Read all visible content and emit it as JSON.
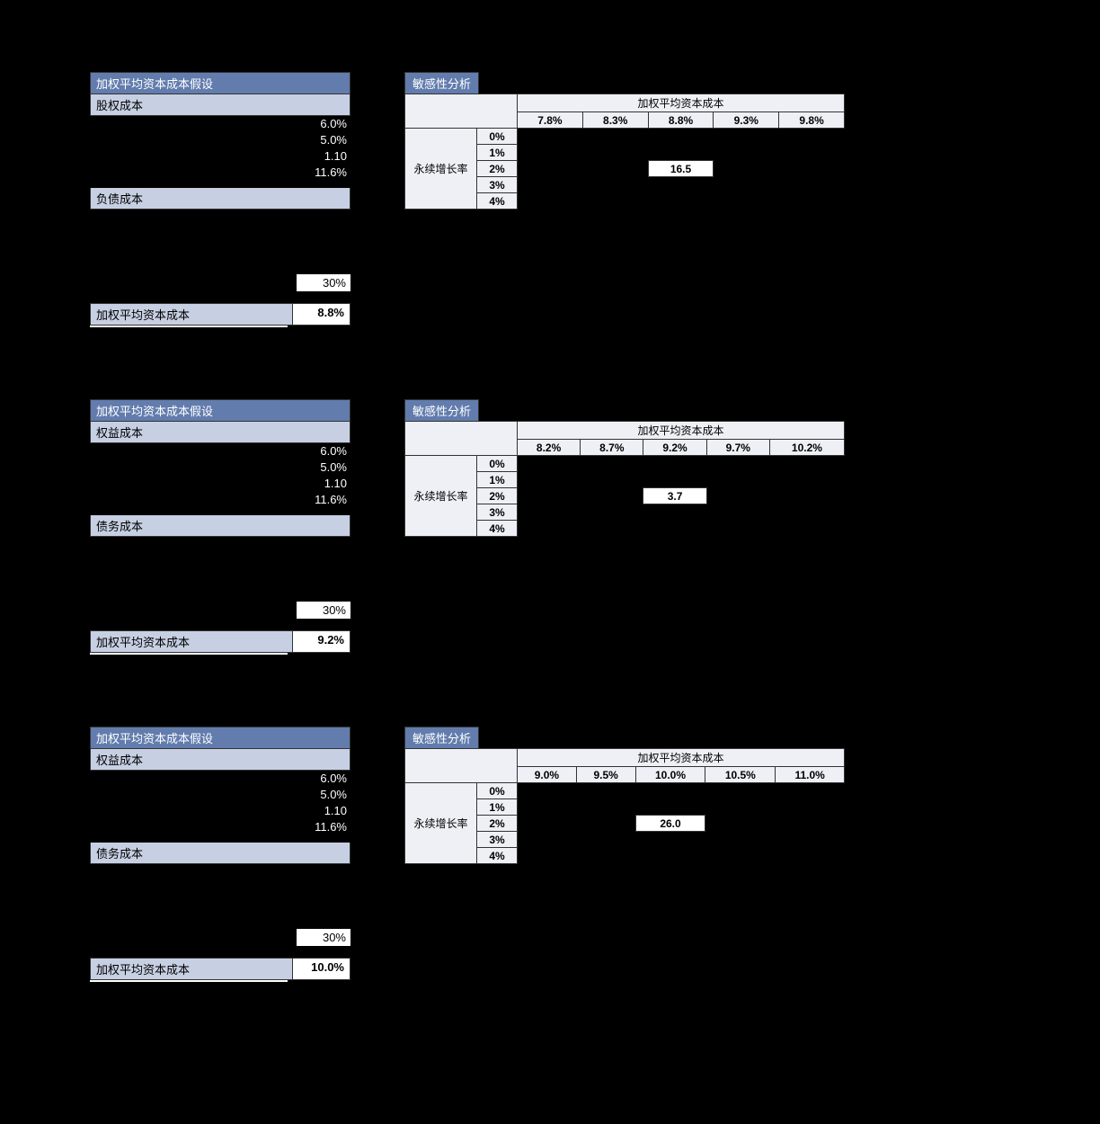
{
  "colors": {
    "title_bg": "#627cad",
    "sub_bg": "#c7d0e3",
    "cell_bg": "#eef0f6",
    "border": "#333333",
    "page_bg": "#000000",
    "text_light": "#ffffff"
  },
  "sections": [
    {
      "wacc": {
        "title": "加权平均资本成本假设",
        "sub1": "股权成本",
        "vals": [
          "6.0%",
          "5.0%",
          "1.10",
          "11.6%"
        ],
        "sub2": "负债成本",
        "gap_rows": 4,
        "boxed_val": "30%",
        "final_label": "加权平均资本成本",
        "final_val": "8.8%"
      },
      "sens": {
        "title": "敏感性分析",
        "col_header": "加权平均资本成本",
        "cols": [
          "7.8%",
          "8.3%",
          "8.8%",
          "9.3%",
          "9.8%"
        ],
        "row_header": "永续增长率",
        "rows": [
          "0%",
          "1%",
          "2%",
          "3%",
          "4%"
        ],
        "spotlight_row": 2,
        "spotlight_col": 2,
        "spotlight_val": "16.5"
      }
    },
    {
      "wacc": {
        "title": "加权平均资本成本假设",
        "sub1": "权益成本",
        "vals": [
          "6.0%",
          "5.0%",
          "1.10",
          "11.6%"
        ],
        "sub2": "债务成本",
        "gap_rows": 4,
        "boxed_val": "30%",
        "final_label": "加权平均资本成本",
        "final_val": "9.2%"
      },
      "sens": {
        "title": "敏感性分析",
        "col_header": "加权平均资本成本",
        "cols": [
          "8.2%",
          "8.7%",
          "9.2%",
          "9.7%",
          "10.2%"
        ],
        "row_header": "永续增长率",
        "rows": [
          "0%",
          "1%",
          "2%",
          "3%",
          "4%"
        ],
        "spotlight_row": 2,
        "spotlight_col": 2,
        "spotlight_val": "3.7"
      }
    },
    {
      "wacc": {
        "title": "加权平均资本成本假设",
        "sub1": "权益成本",
        "vals": [
          "6.0%",
          "5.0%",
          "1.10",
          "11.6%"
        ],
        "sub2": "债务成本",
        "gap_rows": 4,
        "boxed_val": "30%",
        "final_label": "加权平均资本成本",
        "final_val": "10.0%"
      },
      "sens": {
        "title": "敏感性分析",
        "col_header": "加权平均资本成本",
        "cols": [
          "9.0%",
          "9.5%",
          "10.0%",
          "10.5%",
          "11.0%"
        ],
        "row_header": "永续增长率",
        "rows": [
          "0%",
          "1%",
          "2%",
          "3%",
          "4%"
        ],
        "spotlight_row": 2,
        "spotlight_col": 2,
        "spotlight_val": "26.0"
      }
    }
  ]
}
